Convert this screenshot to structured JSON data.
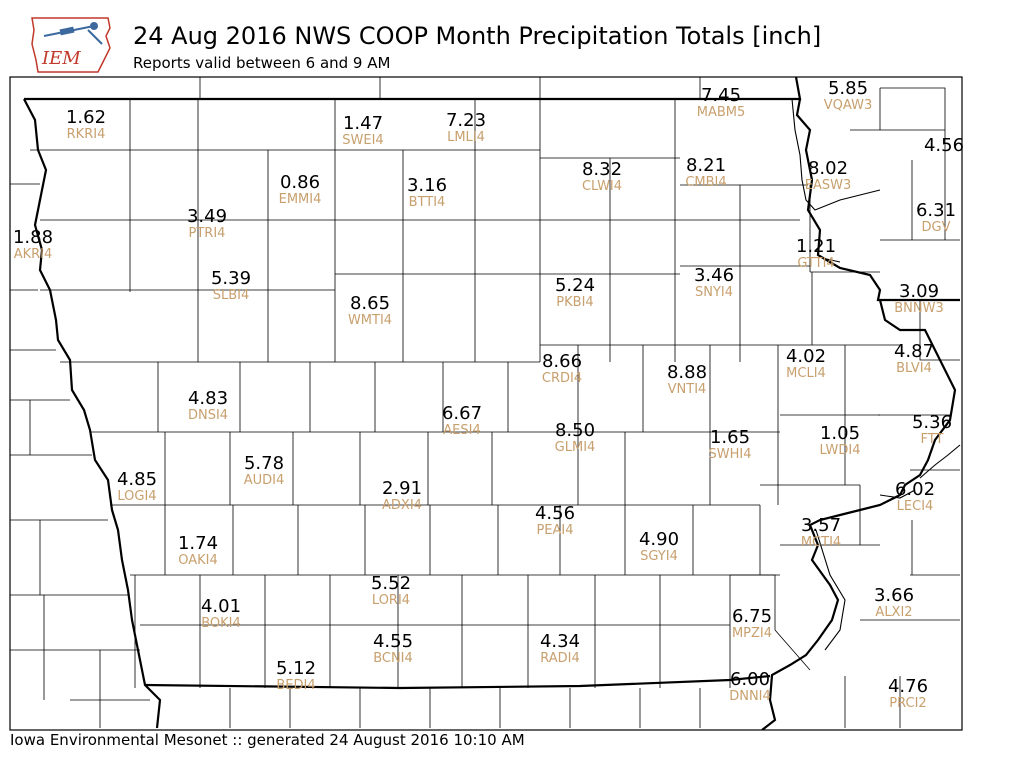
{
  "header": {
    "title": "24 Aug 2016 NWS COOP Month Precipitation Totals [inch]",
    "subtitle": "Reports valid between 6 and 9 AM",
    "logo_text": "IEM"
  },
  "footer": {
    "text": "Iowa Environmental Mesonet :: generated 24 August 2016 10:10 AM"
  },
  "colors": {
    "station_id": "#c8a06e",
    "value": "#000000",
    "logo_blue": "#3c6a9e",
    "logo_red": "#c0392b"
  },
  "stations": [
    {
      "id": "RKRI4",
      "value": "1.62"
    },
    {
      "id": "SWEI4",
      "value": "1.47"
    },
    {
      "id": "LMLI4",
      "value": "7.23"
    },
    {
      "id": "MABM5",
      "value": "7.45"
    },
    {
      "id": "VQAW3",
      "value": "5.85"
    },
    {
      "id": "",
      "value": "4.56"
    },
    {
      "id": "CLWI4",
      "value": "8.32"
    },
    {
      "id": "CMBI4",
      "value": "8.21"
    },
    {
      "id": "EASW3",
      "value": "8.02"
    },
    {
      "id": "EMMI4",
      "value": "0.86"
    },
    {
      "id": "BTTI4",
      "value": "3.16"
    },
    {
      "id": "PTRI4",
      "value": "3.49"
    },
    {
      "id": "DGV",
      "value": "6.31"
    },
    {
      "id": "AKRI4",
      "value": "1.88"
    },
    {
      "id": "GTTI4",
      "value": "1.21"
    },
    {
      "id": "SLBI4",
      "value": "5.39"
    },
    {
      "id": "PKBI4",
      "value": "5.24"
    },
    {
      "id": "SNYI4",
      "value": "3.46"
    },
    {
      "id": "BNNW3",
      "value": "3.09"
    },
    {
      "id": "WMTI4",
      "value": "8.65"
    },
    {
      "id": "CRDI4",
      "value": "8.66"
    },
    {
      "id": "VNTI4",
      "value": "8.88"
    },
    {
      "id": "MCLI4",
      "value": "4.02"
    },
    {
      "id": "BLVI4",
      "value": "4.87"
    },
    {
      "id": "DNSI4",
      "value": "4.83"
    },
    {
      "id": "AESI4",
      "value": "6.67"
    },
    {
      "id": "FTT",
      "value": "5.36"
    },
    {
      "id": "GLMI4",
      "value": "8.50"
    },
    {
      "id": "SWHI4",
      "value": "1.65"
    },
    {
      "id": "LWDI4",
      "value": "1.05"
    },
    {
      "id": "LOGI4",
      "value": "4.85"
    },
    {
      "id": "AUDI4",
      "value": "5.78"
    },
    {
      "id": "ADXI4",
      "value": "2.91"
    },
    {
      "id": "LECI4",
      "value": "6.02"
    },
    {
      "id": "PEAI4",
      "value": "4.56"
    },
    {
      "id": "SGYI4",
      "value": "4.90"
    },
    {
      "id": "MCTI4",
      "value": "3.57"
    },
    {
      "id": "OAKI4",
      "value": "1.74"
    },
    {
      "id": "LORI4",
      "value": "5.52"
    },
    {
      "id": "ALXI2",
      "value": "3.66"
    },
    {
      "id": "BOKI4",
      "value": "4.01"
    },
    {
      "id": "MPZI4",
      "value": "6.75"
    },
    {
      "id": "BCNI4",
      "value": "4.55"
    },
    {
      "id": "RADI4",
      "value": "4.34"
    },
    {
      "id": "BEDI4",
      "value": "5.12"
    },
    {
      "id": "DNNI4",
      "value": "6.00"
    },
    {
      "id": "PRCI2",
      "value": "4.76"
    }
  ]
}
